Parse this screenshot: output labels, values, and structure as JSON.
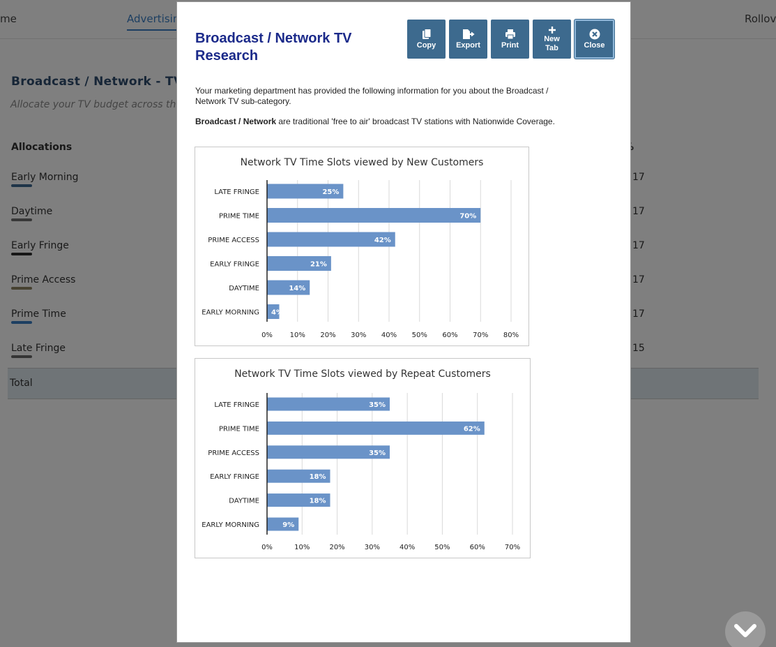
{
  "background": {
    "nav": {
      "items": [
        "me",
        "Advertising",
        "Rollove"
      ],
      "active_index": 1
    },
    "title": "Broadcast / Network - TV",
    "subtitle": "Allocate your TV budget across the E",
    "allocations_header": "Allocations",
    "percent_header": "%",
    "rows": [
      {
        "label": "Early Morning",
        "value": "17",
        "color": "#3f6a93"
      },
      {
        "label": "Daytime",
        "value": "17",
        "color": "#6f6f6f"
      },
      {
        "label": "Early Fringe",
        "value": "17",
        "color": "#2f2f2f"
      },
      {
        "label": "Prime Access",
        "value": "17",
        "color": "#8e8462"
      },
      {
        "label": "Prime Time",
        "value": "17",
        "color": "#3a7fc4"
      },
      {
        "label": "Late Fringe",
        "value": "15",
        "color": "#6b6b6b"
      }
    ],
    "total_label": "Total"
  },
  "modal": {
    "title": "Broadcast / Network TV Research",
    "buttons": [
      {
        "name": "copy-button",
        "icon": "copy-icon",
        "label": "Copy"
      },
      {
        "name": "export-button",
        "icon": "export-icon",
        "label": "Export"
      },
      {
        "name": "print-button",
        "icon": "print-icon",
        "label": "Print"
      },
      {
        "name": "new-tab-button",
        "icon": "plus-icon",
        "label": "New Tab"
      },
      {
        "name": "close-button",
        "icon": "close-circle-icon",
        "label": "Close"
      }
    ],
    "intro_text": "Your marketing department has provided the following information for you about the Broadcast / Network TV sub-category.",
    "definition_bold": "Broadcast / Network",
    "definition_rest": " are traditional 'free to air' broadcast TV stations with Nationwide Coverage."
  },
  "chart_data": [
    {
      "type": "bar",
      "orientation": "horizontal",
      "title": "Network TV Time Slots viewed by New Customers",
      "categories": [
        "LATE FRINGE",
        "PRIME TIME",
        "PRIME ACCESS",
        "EARLY FRINGE",
        "DAYTIME",
        "EARLY MORNING"
      ],
      "values": [
        25,
        70,
        42,
        21,
        14,
        4
      ],
      "value_suffix": "%",
      "xlim": [
        0,
        80
      ],
      "xticks": [
        0,
        10,
        20,
        30,
        40,
        50,
        60,
        70,
        80
      ],
      "grid": true,
      "bar_color": "#6a93c8"
    },
    {
      "type": "bar",
      "orientation": "horizontal",
      "title": "Network TV Time Slots viewed by Repeat Customers",
      "categories": [
        "LATE FRINGE",
        "PRIME TIME",
        "PRIME ACCESS",
        "EARLY FRINGE",
        "DAYTIME",
        "EARLY MORNING"
      ],
      "values": [
        35,
        62,
        35,
        18,
        18,
        9
      ],
      "value_suffix": "%",
      "xlim": [
        0,
        70
      ],
      "xticks": [
        0,
        10,
        20,
        30,
        40,
        50,
        60,
        70
      ],
      "grid": true,
      "bar_color": "#6a93c8"
    }
  ]
}
